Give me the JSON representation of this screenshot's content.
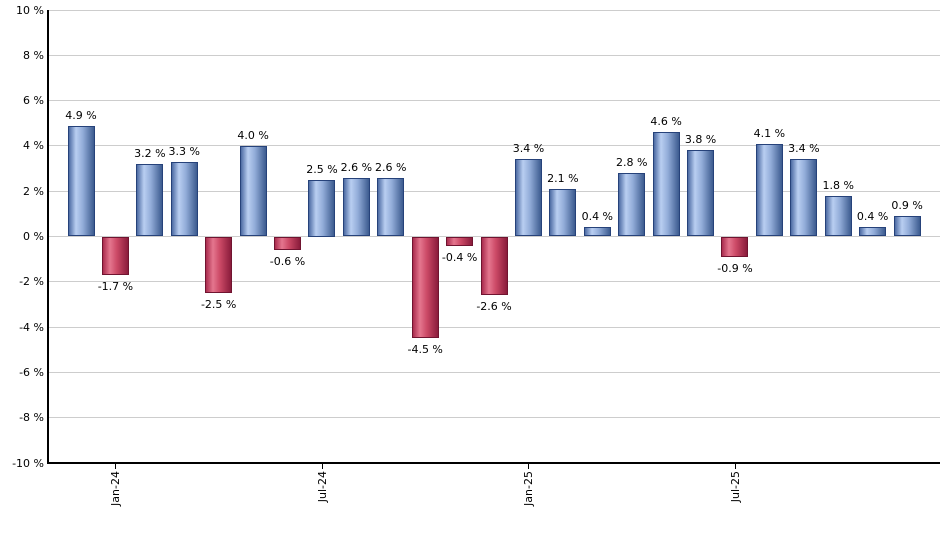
{
  "chart_data": {
    "type": "bar",
    "title": "",
    "xlabel": "",
    "ylabel": "",
    "ylim": [
      -10,
      10
    ],
    "grid": true,
    "legend": "none",
    "values": [
      4.9,
      -1.7,
      3.2,
      3.3,
      -2.5,
      4.0,
      -0.6,
      2.5,
      2.6,
      2.6,
      -4.5,
      -0.4,
      -2.6,
      3.4,
      2.1,
      0.4,
      2.8,
      4.6,
      3.8,
      -0.9,
      4.1,
      3.4,
      1.8,
      0.4,
      0.9
    ],
    "bar_labels": [
      "4.9 %",
      "-1.7 %",
      "3.2 %",
      "3.3 %",
      "-2.5 %",
      "4.0 %",
      "-0.6 %",
      "2.5 %",
      "2.6 %",
      "2.6 %",
      "-4.5 %",
      "-0.4 %",
      "-2.6 %",
      "3.4 %",
      "2.1 %",
      "0.4 %",
      "2.8 %",
      "4.6 %",
      "3.8 %",
      "-0.9 %",
      "4.1 %",
      "3.4 %",
      "1.8 %",
      "0.4 %",
      "0.9 %"
    ],
    "x_ticks": [
      {
        "index": 1,
        "label": "Jan-24"
      },
      {
        "index": 7,
        "label": "Jul-24"
      },
      {
        "index": 13,
        "label": "Jan-25"
      },
      {
        "index": 19,
        "label": "Jul-25"
      }
    ],
    "y_ticks": [
      {
        "value": 10,
        "label": "10 %"
      },
      {
        "value": 8,
        "label": "8 %"
      },
      {
        "value": 6,
        "label": "6 %"
      },
      {
        "value": 4,
        "label": "4 %"
      },
      {
        "value": 2,
        "label": "2 %"
      },
      {
        "value": 0,
        "label": "0 %"
      },
      {
        "value": -2,
        "label": "-2 %"
      },
      {
        "value": -4,
        "label": "-4 %"
      },
      {
        "value": -6,
        "label": "-6 %"
      },
      {
        "value": -8,
        "label": "-8 %"
      },
      {
        "value": -10,
        "label": "-10 %"
      }
    ],
    "colors": {
      "positive_bar": "#6f8cbf",
      "positive_bar_highlight": "#b9cef1",
      "positive_bar_border": "#26427a",
      "negative_bar": "#cc4a67",
      "negative_bar_highlight": "#e4768e",
      "negative_bar_border": "#701430",
      "gridline": "#cdcdcd",
      "axis": "#000000",
      "label_text": "#000000",
      "background": "#ffffff"
    }
  }
}
